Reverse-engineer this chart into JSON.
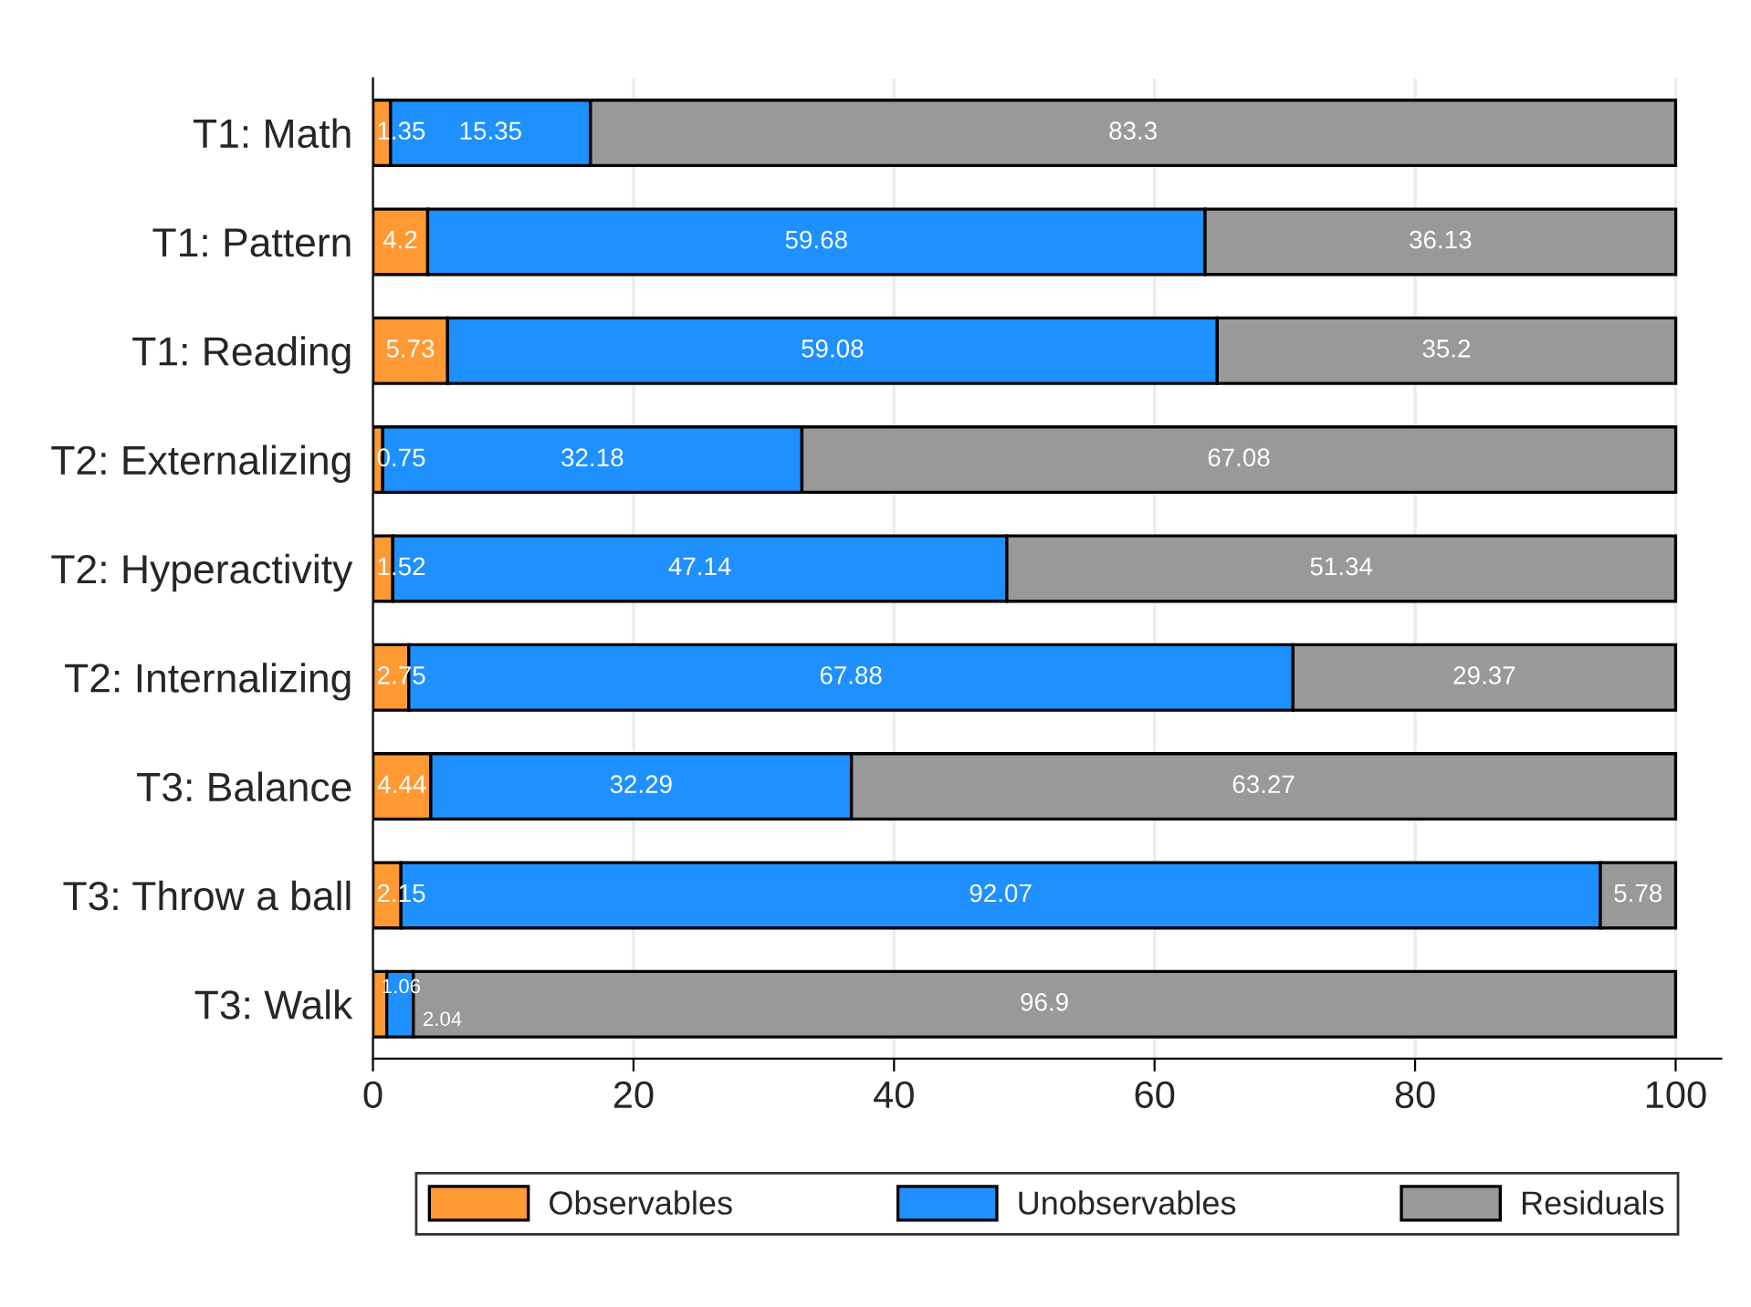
{
  "chart_data": {
    "type": "bar",
    "orientation": "horizontal",
    "stacked": true,
    "categories": [
      "T1: Math",
      "T1: Pattern",
      "T1: Reading",
      "T2: Externalizing",
      "T2: Hyperactivity",
      "T2: Internalizing",
      "T3: Balance",
      "T3: Throw a ball",
      "T3: Walk"
    ],
    "series": [
      {
        "name": "Observables",
        "color": "#ff9933",
        "values": [
          1.35,
          4.2,
          5.73,
          0.75,
          1.52,
          2.75,
          4.44,
          2.15,
          1.06
        ]
      },
      {
        "name": "Unobservables",
        "color": "#1e90ff",
        "values": [
          15.35,
          59.68,
          59.08,
          32.18,
          47.14,
          67.88,
          32.29,
          92.07,
          2.04
        ]
      },
      {
        "name": "Residuals",
        "color": "#999999",
        "values": [
          83.3,
          36.13,
          35.2,
          67.08,
          51.34,
          29.37,
          63.27,
          5.78,
          96.9
        ]
      }
    ],
    "xlim": [
      0,
      103.5
    ],
    "xticks": [
      0,
      20,
      40,
      60,
      80,
      100
    ],
    "grid": "x",
    "legend": "bottom",
    "data_labels": true
  }
}
